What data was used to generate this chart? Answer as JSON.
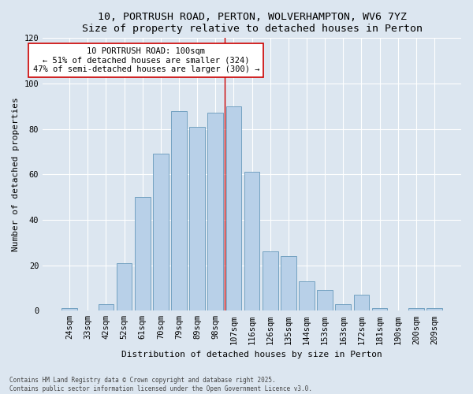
{
  "title1": "10, PORTRUSH ROAD, PERTON, WOLVERHAMPTON, WV6 7YZ",
  "title2": "Size of property relative to detached houses in Perton",
  "xlabel": "Distribution of detached houses by size in Perton",
  "ylabel": "Number of detached properties",
  "categories": [
    "24sqm",
    "33sqm",
    "42sqm",
    "52sqm",
    "61sqm",
    "70sqm",
    "79sqm",
    "89sqm",
    "98sqm",
    "107sqm",
    "116sqm",
    "126sqm",
    "135sqm",
    "144sqm",
    "153sqm",
    "163sqm",
    "172sqm",
    "181sqm",
    "190sqm",
    "200sqm",
    "209sqm"
  ],
  "values": [
    1,
    0,
    3,
    21,
    50,
    69,
    88,
    81,
    87,
    90,
    61,
    26,
    24,
    13,
    9,
    3,
    7,
    1,
    0,
    1,
    1
  ],
  "bar_color": "#b8d0e8",
  "bar_edge_color": "#6699bb",
  "vline_x_index": 8,
  "vline_color": "#cc0000",
  "annotation_text": "10 PORTRUSH ROAD: 100sqm\n← 51% of detached houses are smaller (324)\n47% of semi-detached houses are larger (300) →",
  "annotation_box_color": "#ffffff",
  "annotation_box_edge_color": "#cc0000",
  "ylim": [
    0,
    120
  ],
  "yticks": [
    0,
    20,
    40,
    60,
    80,
    100,
    120
  ],
  "footer_text": "Contains HM Land Registry data © Crown copyright and database right 2025.\nContains public sector information licensed under the Open Government Licence v3.0.",
  "bg_color": "#dce6f0",
  "title1_fontsize": 9.5,
  "title2_fontsize": 9,
  "xlabel_fontsize": 8,
  "ylabel_fontsize": 8,
  "tick_fontsize": 7.5,
  "annot_fontsize": 7.5,
  "footer_fontsize": 5.5
}
